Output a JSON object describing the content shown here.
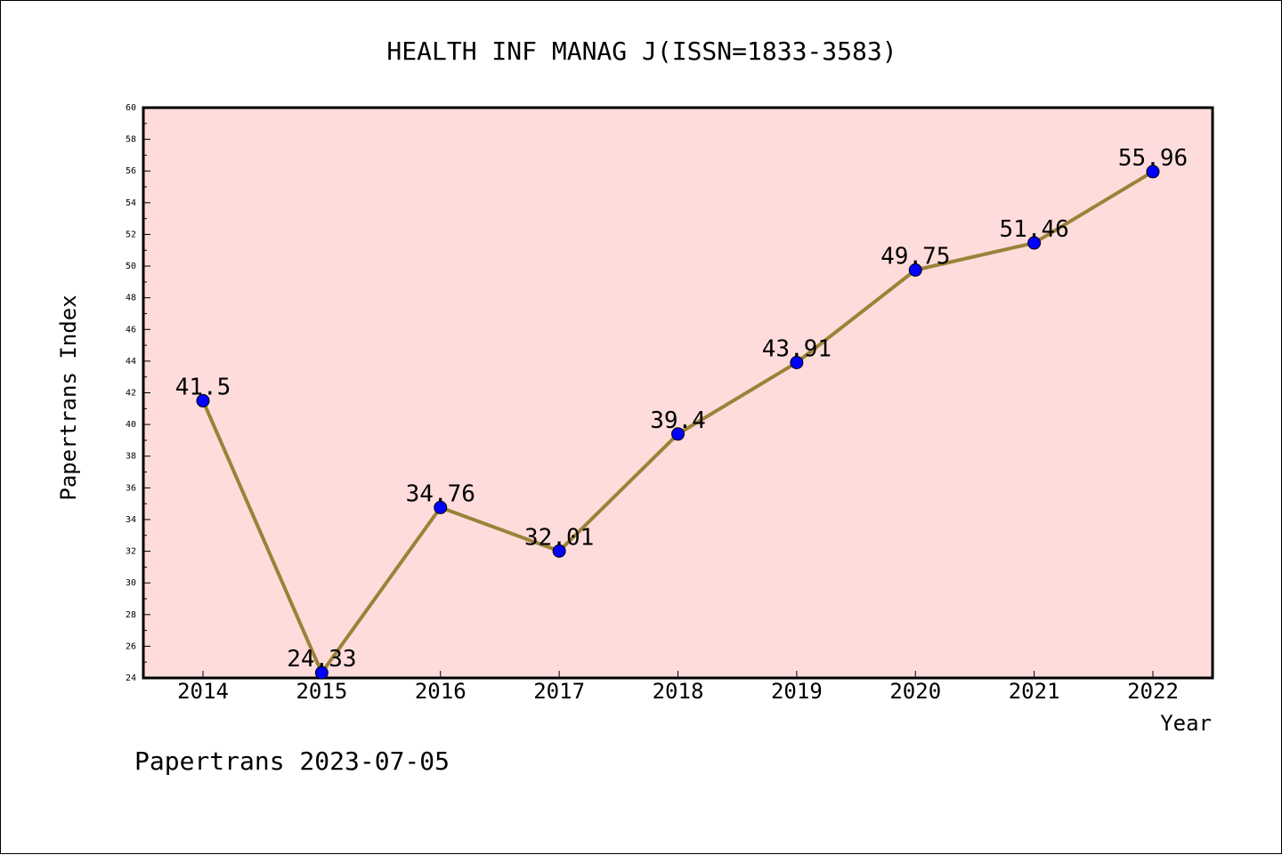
{
  "chart_data": {
    "type": "line",
    "title": "HEALTH INF MANAG J(ISSN=1833-3583)",
    "xlabel": "Year",
    "ylabel": "Papertrans Index",
    "footer": "Papertrans 2023-07-05",
    "categories": [
      "2014",
      "2015",
      "2016",
      "2017",
      "2018",
      "2019",
      "2020",
      "2021",
      "2022"
    ],
    "series": [
      {
        "values": [
          41.5,
          24.33,
          34.76,
          32.01,
          39.4,
          43.91,
          49.75,
          51.46,
          55.96
        ],
        "labels": [
          "41.5",
          "24.33",
          "34.76",
          "32.01",
          "39.4",
          "43.91",
          "49.75",
          "51.46",
          "55.96"
        ]
      }
    ],
    "ylim": [
      24,
      60
    ],
    "yticks": [
      24,
      26,
      28,
      30,
      32,
      34,
      36,
      38,
      40,
      42,
      44,
      46,
      48,
      50,
      52,
      54,
      56,
      58,
      60
    ],
    "grid": false,
    "colors": {
      "plot_background": "#ffdcdc",
      "line": "#9b8238",
      "marker": "#0000ff"
    }
  }
}
